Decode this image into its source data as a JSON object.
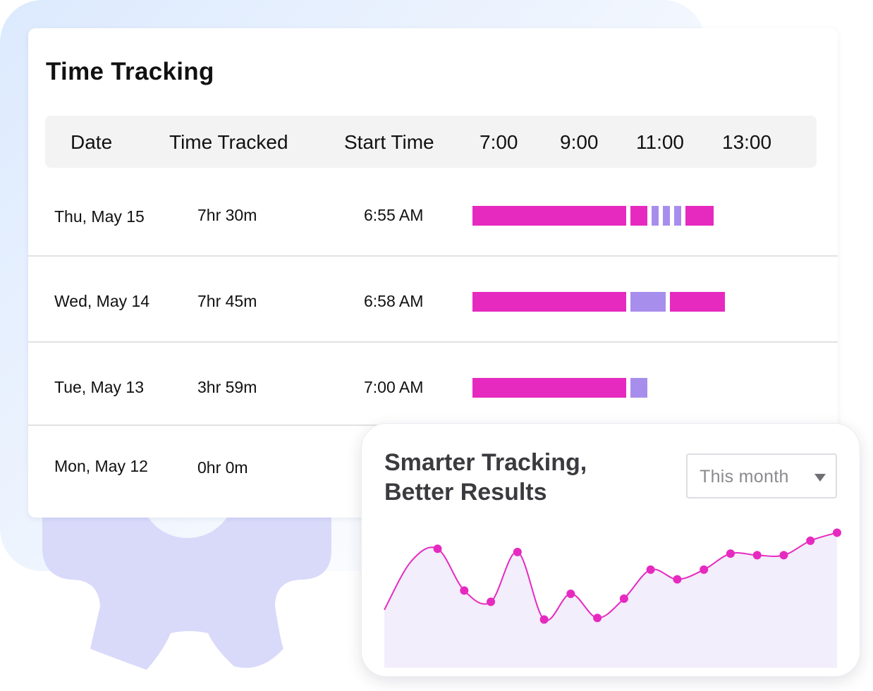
{
  "card": {
    "title": "Time Tracking",
    "columns": [
      "Date",
      "Time Tracked",
      "Start Time"
    ],
    "hour_labels": [
      "7:00",
      "9:00",
      "11:00",
      "13:00"
    ],
    "rows": [
      {
        "date": "Thu, May 15",
        "tracked": "7hr 30m",
        "start": "6:55 AM"
      },
      {
        "date": "Wed, May 14",
        "tracked": "7hr 45m",
        "start": "6:58 AM"
      },
      {
        "date": "Tue, May 13",
        "tracked": "3hr 59m",
        "start": "7:00 AM"
      },
      {
        "date": "Mon, May 12",
        "tracked": "0hr 0m",
        "start": ""
      }
    ]
  },
  "panel": {
    "title_line1": "Smarter Tracking,",
    "title_line2": "Better Results",
    "dropdown_value": "This month"
  },
  "colors": {
    "work": "#e62ac0",
    "break": "#a88eec",
    "line": "#e62ac0",
    "area": "#f2eefc",
    "gear": "#d9dafa"
  },
  "icons": [
    "gear-icon",
    "chevron-down-icon"
  ],
  "chart_data": {
    "type": "line",
    "title": "",
    "xlabel": "",
    "ylabel": "",
    "x": [
      0,
      1,
      2,
      3,
      4,
      5,
      6,
      7,
      8,
      9,
      10,
      11,
      12,
      13,
      14,
      15,
      16,
      17
    ],
    "y": [
      0.36,
      0.66,
      0.74,
      0.48,
      0.41,
      0.72,
      0.3,
      0.46,
      0.31,
      0.43,
      0.61,
      0.55,
      0.61,
      0.71,
      0.7,
      0.7,
      0.79,
      0.84
    ],
    "marker_indices": [
      2,
      3,
      4,
      5,
      6,
      7,
      8,
      9,
      10,
      11,
      12,
      13,
      14,
      15,
      16,
      17
    ],
    "ylim": [
      0,
      1
    ],
    "grid": false,
    "legend": "none"
  }
}
